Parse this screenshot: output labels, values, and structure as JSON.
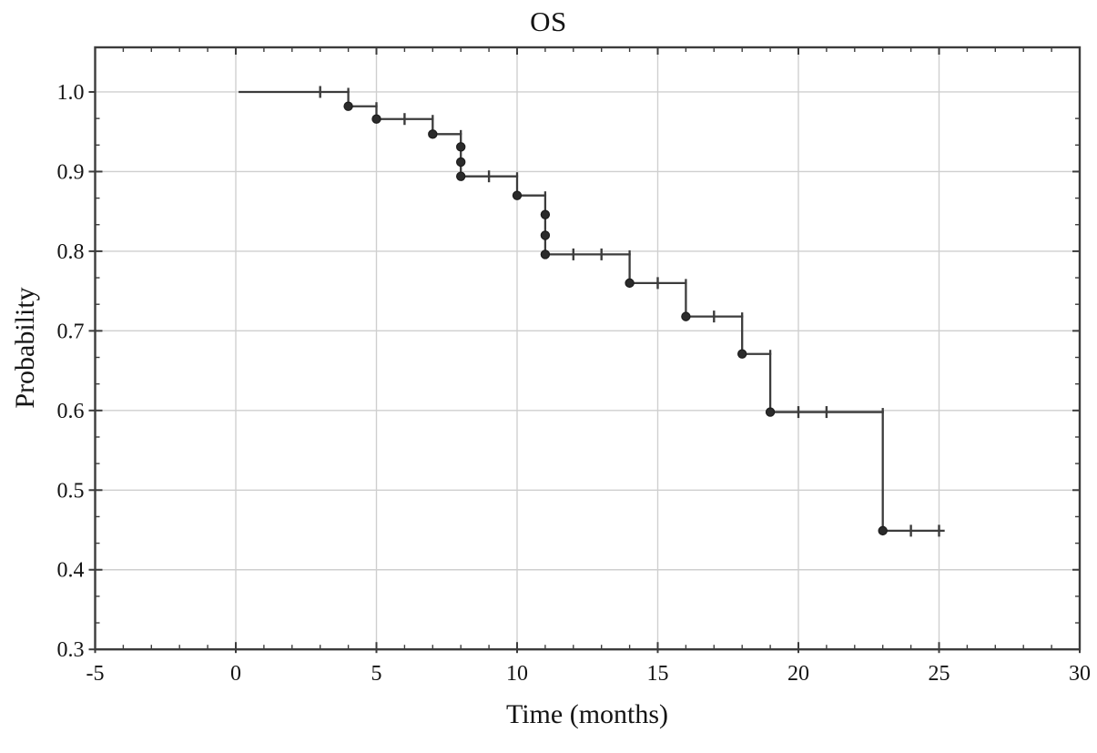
{
  "figure": {
    "title": "OS",
    "xlabel": "Time (months)",
    "ylabel": "Probability"
  },
  "chart_data": {
    "type": "line",
    "subtype": "kaplan-meier-step-curve",
    "title": "OS",
    "xlabel": "Time (months)",
    "ylabel": "Probability",
    "xlim": [
      -5,
      30
    ],
    "ylim": [
      0.3,
      1.056
    ],
    "grid": true,
    "legend": false,
    "event_marker": "filled-circle",
    "censor_marker": "plus-tick",
    "xticks": [
      -5,
      0,
      5,
      10,
      15,
      20,
      25,
      30
    ],
    "xtick_labels": [
      "-5",
      "0",
      "5",
      "10",
      "15",
      "20",
      "25",
      "30"
    ],
    "yticks": [
      0.3,
      0.4,
      0.5,
      0.6,
      0.7,
      0.8,
      0.9,
      1.0
    ],
    "ytick_labels": [
      "0.3",
      "0.4",
      "0.5",
      "0.6",
      "0.7",
      "0.8",
      "0.9",
      "1.0"
    ],
    "series": [
      {
        "name": "OS",
        "curve_start_t": 0.1,
        "curve_end_t": 25.2,
        "steps": [
          {
            "t": 0.1,
            "s": 1.0
          },
          {
            "t": 4,
            "s": 0.982
          },
          {
            "t": 5,
            "s": 0.966
          },
          {
            "t": 7,
            "s": 0.947
          },
          {
            "t": 8,
            "s": 0.894
          },
          {
            "t": 10,
            "s": 0.87
          },
          {
            "t": 11,
            "s": 0.796
          },
          {
            "t": 14,
            "s": 0.76
          },
          {
            "t": 16,
            "s": 0.718
          },
          {
            "t": 18,
            "s": 0.671
          },
          {
            "t": 19,
            "s": 0.598
          },
          {
            "t": 23,
            "s": 0.449
          }
        ],
        "events": [
          {
            "t": 4,
            "s": 0.982
          },
          {
            "t": 5,
            "s": 0.966
          },
          {
            "t": 7,
            "s": 0.947
          },
          {
            "t": 8,
            "s": 0.931
          },
          {
            "t": 8,
            "s": 0.912
          },
          {
            "t": 8,
            "s": 0.894
          },
          {
            "t": 10,
            "s": 0.87
          },
          {
            "t": 11,
            "s": 0.846
          },
          {
            "t": 11,
            "s": 0.82
          },
          {
            "t": 11,
            "s": 0.796
          },
          {
            "t": 14,
            "s": 0.76
          },
          {
            "t": 16,
            "s": 0.718
          },
          {
            "t": 18,
            "s": 0.671
          },
          {
            "t": 19,
            "s": 0.598
          },
          {
            "t": 23,
            "s": 0.449
          }
        ],
        "censored": [
          {
            "t": 3,
            "s": 1.0
          },
          {
            "t": 6,
            "s": 0.966
          },
          {
            "t": 9,
            "s": 0.894
          },
          {
            "t": 12,
            "s": 0.796
          },
          {
            "t": 13,
            "s": 0.796
          },
          {
            "t": 15,
            "s": 0.76
          },
          {
            "t": 17,
            "s": 0.718
          },
          {
            "t": 20,
            "s": 0.598
          },
          {
            "t": 21,
            "s": 0.598
          },
          {
            "t": 24,
            "s": 0.449
          },
          {
            "t": 25,
            "s": 0.449
          }
        ]
      }
    ],
    "colors": {
      "line": "#3c3c3c",
      "marker": "#2b2b2b",
      "grid": "#cfcfcf",
      "frame": "#3c3c3c",
      "text": "#141414",
      "background": "#ffffff"
    }
  }
}
